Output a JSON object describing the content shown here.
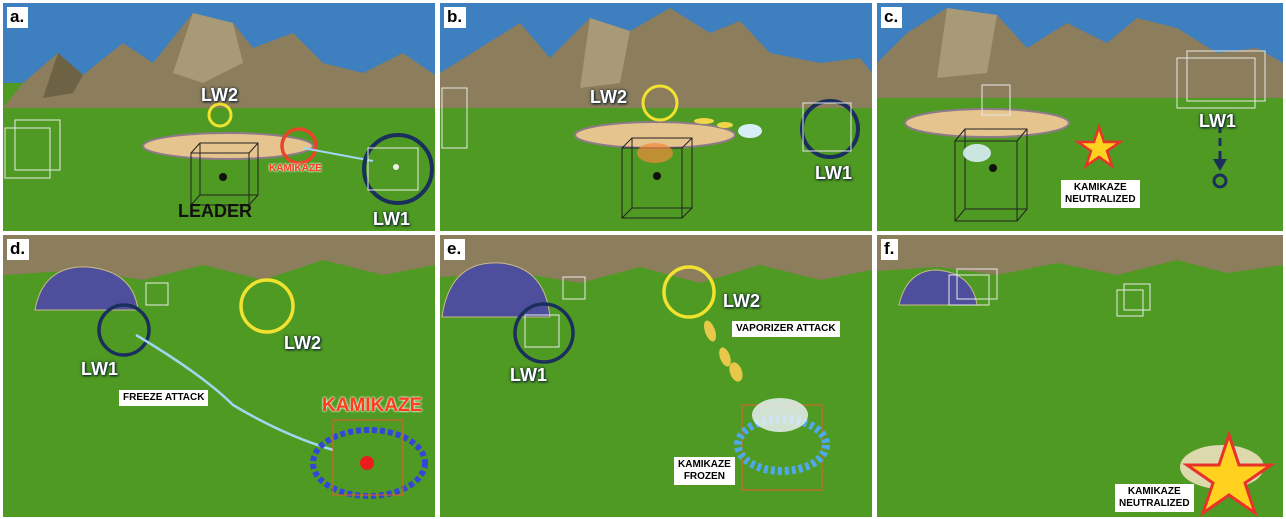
{
  "figure": {
    "panels": [
      {
        "letter": "a.",
        "labels": {
          "lw2": "LW2",
          "kamikaze": "KAMIKAZE",
          "leader": "LEADER",
          "lw1": "LW1"
        }
      },
      {
        "letter": "b.",
        "labels": {
          "lw2": "LW2",
          "lw1": "LW1"
        }
      },
      {
        "letter": "c.",
        "labels": {
          "lw1": "LW1",
          "kamikaze_line1": "KAMIKAZE",
          "kamikaze_line2": "NEUTRALIZED"
        }
      },
      {
        "letter": "d.",
        "labels": {
          "lw1": "LW1",
          "lw2": "LW2",
          "freeze": "FREEZE ATTACK",
          "kamikaze": "KAMIKAZE"
        }
      },
      {
        "letter": "e.",
        "labels": {
          "lw2": "LW2",
          "vaporizer": "VAPORIZER ATTACK",
          "lw1": "LW1",
          "frozen_line1": "KAMIKAZE",
          "frozen_line2": "FROZEN"
        }
      },
      {
        "letter": "f.",
        "labels": {
          "kamikaze_line1": "KAMIKAZE",
          "kamikaze_line2": "NEUTRALIZED"
        }
      }
    ]
  },
  "colors": {
    "sky": "#3d7fbf",
    "grass": "#4f9a22",
    "mountain": "#8c7d5c",
    "dome": "#4d4f9c",
    "leader_ring": "#1a2f5c",
    "lw2_ring": "#f2e230",
    "kamikaze_ring": "#e8452a",
    "star_fill": "#ffd21f",
    "star_stroke": "#e8332a"
  }
}
